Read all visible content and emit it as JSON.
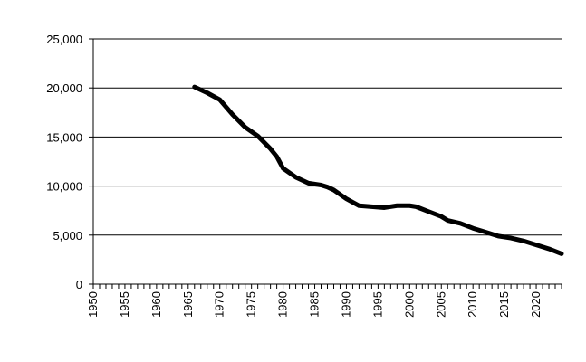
{
  "chart_data": {
    "type": "line",
    "title": "",
    "xlabel": "",
    "ylabel": "",
    "xlim": [
      1950,
      2024
    ],
    "ylim": [
      0,
      25000
    ],
    "x_ticks": [
      "1950",
      "1955",
      "1960",
      "1965",
      "1970",
      "1975",
      "1980",
      "1985",
      "1990",
      "1995",
      "2000",
      "2005",
      "2010",
      "2015",
      "2020"
    ],
    "y_ticks": [
      "0",
      "5,000",
      "10,000",
      "15,000",
      "20,000",
      "25,000"
    ],
    "y_tick_values": [
      0,
      5000,
      10000,
      15000,
      20000,
      25000
    ],
    "grid": "horizontal",
    "legend": "none",
    "line_color": "#000000",
    "series": [
      {
        "x": [
          1966,
          1968,
          1970,
          1972,
          1974,
          1976,
          1978,
          1979,
          1980,
          1982,
          1984,
          1986,
          1987,
          1988,
          1990,
          1992,
          1994,
          1996,
          1998,
          2000,
          2001,
          2003,
          2005,
          2006,
          2008,
          2010,
          2012,
          2014,
          2016,
          2018,
          2020,
          2022,
          2024
        ],
        "values": [
          20100,
          19500,
          18800,
          17300,
          16000,
          15100,
          13800,
          13000,
          11800,
          10900,
          10300,
          10100,
          9900,
          9600,
          8700,
          8000,
          7900,
          7800,
          8000,
          8000,
          7900,
          7400,
          6900,
          6500,
          6200,
          5700,
          5300,
          4900,
          4700,
          4400,
          4000,
          3600,
          3100
        ]
      }
    ]
  }
}
